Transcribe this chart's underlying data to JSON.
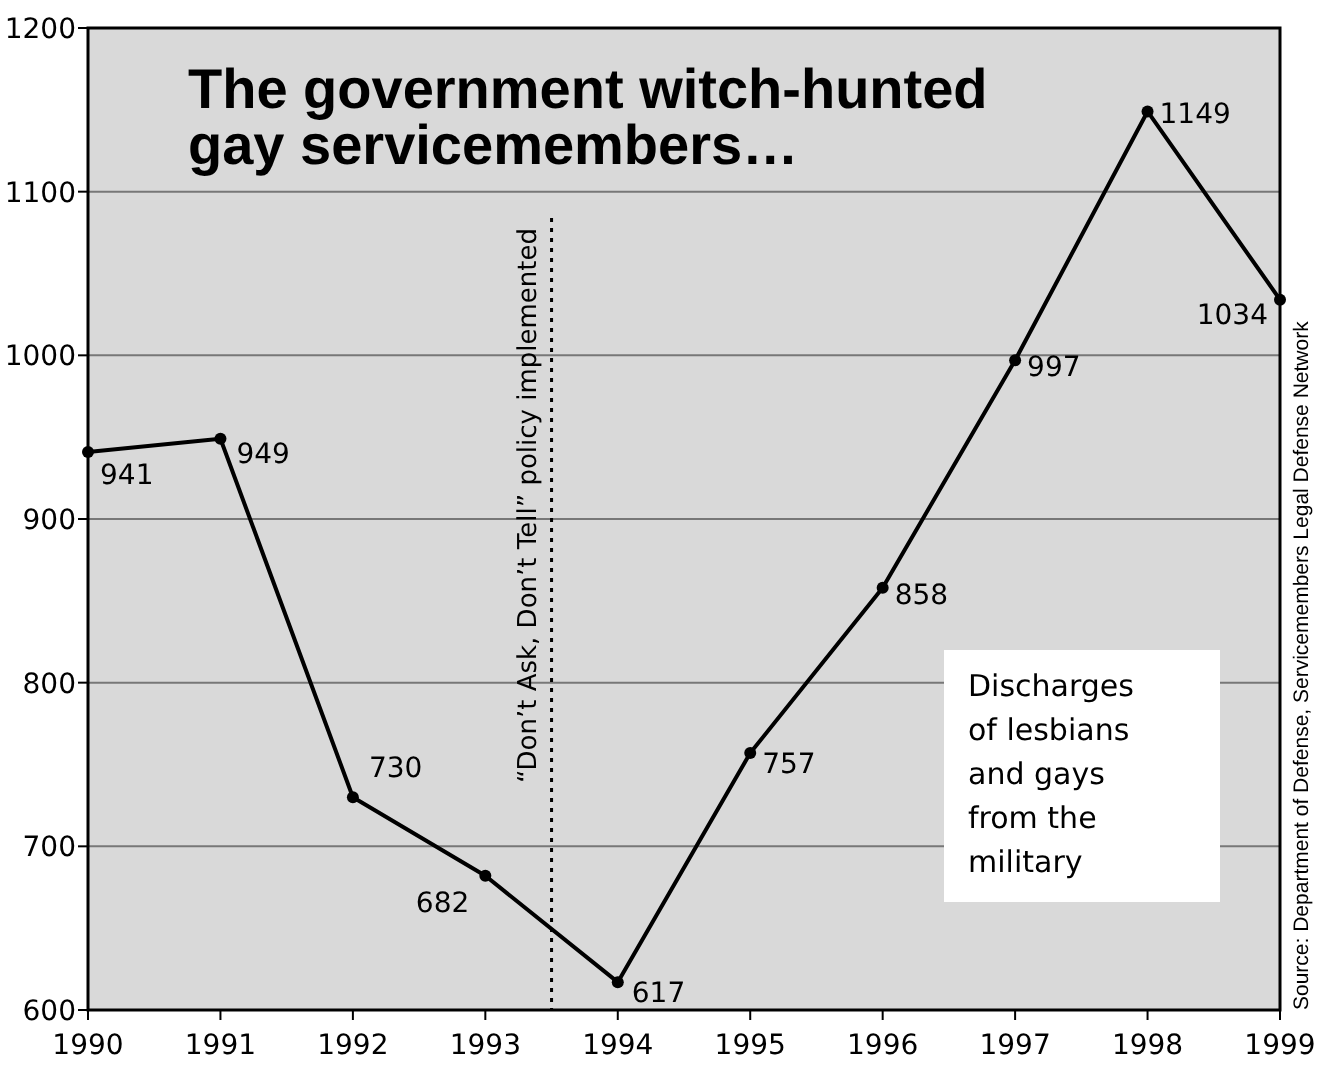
{
  "chart_data": {
    "type": "line",
    "title": "The government witch-hunted gay servicemembers…",
    "x": [
      1990,
      1991,
      1992,
      1993,
      1994,
      1995,
      1996,
      1997,
      1998,
      1999
    ],
    "series": [
      {
        "color": "#000000",
        "values": [
          941,
          949,
          730,
          682,
          617,
          757,
          858,
          997,
          1149,
          1034
        ]
      }
    ],
    "xlim": [
      1990,
      1999
    ],
    "xticks": [
      1990,
      1991,
      1992,
      1993,
      1994,
      1995,
      1996,
      1997,
      1998,
      1999
    ],
    "ylim": [
      600,
      1200
    ],
    "yticks": [
      600,
      700,
      800,
      900,
      1000,
      1100,
      1200
    ],
    "grid": "y",
    "marker": "circle",
    "line_style": "solid",
    "data_labels": true,
    "ref_lines": [
      {
        "axis": "x",
        "value": 1993.5,
        "label": "“Don’t Ask, Don’t Tell” policy implemented",
        "line_style": "dotted",
        "color": "#000000"
      }
    ],
    "annotations": [
      "Discharges of lesbians and gays from the military",
      "Source: Department of Defense, Servicemembers Legal Defense Network"
    ]
  }
}
